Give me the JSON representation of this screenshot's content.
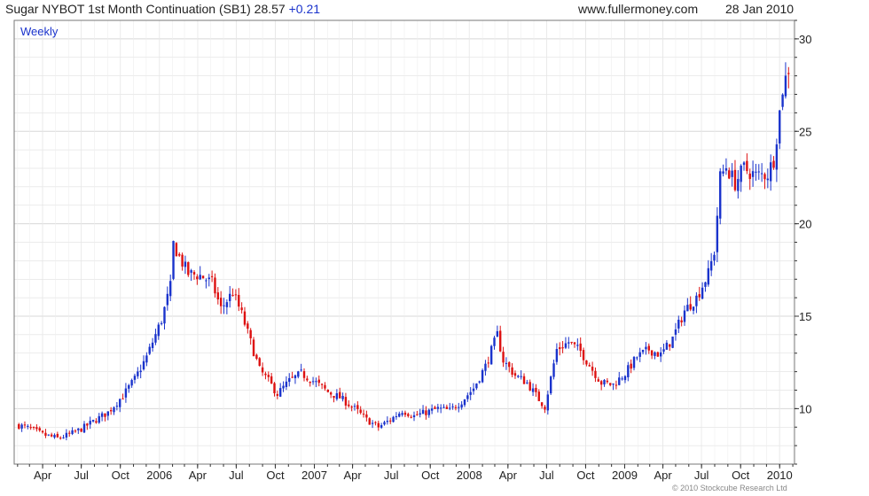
{
  "header": {
    "symbol_title": "Sugar NYBOT 1st Month Continuation (SB1) 28.57",
    "change": "+0.21",
    "site": "www.fullermoney.com",
    "date": "28 Jan 2010"
  },
  "footer": {
    "credit": "© 2010 Stockcube Research Ltd"
  },
  "colors": {
    "up": "#1a33cc",
    "down": "#dd1111",
    "grid": "#d8d8d8",
    "axis": "#333333"
  },
  "chart_data": {
    "type": "candlestick",
    "frequency_label": "Weekly",
    "ylim": [
      7,
      31
    ],
    "y_ticks": [
      10,
      15,
      20,
      25,
      30
    ],
    "x_ticks": [
      "Apr",
      "Jul",
      "Oct",
      "2006",
      "Apr",
      "Jul",
      "Oct",
      "2007",
      "Apr",
      "Jul",
      "Oct",
      "2008",
      "Apr",
      "Jul",
      "Oct",
      "2009",
      "Apr",
      "Jul",
      "Oct",
      "2010"
    ],
    "grid": true,
    "close_series": [
      {
        "x": "2005-02-04",
        "y": 9.1
      },
      {
        "x": "2005-03-04",
        "y": 8.9
      },
      {
        "x": "2005-04-01",
        "y": 8.6
      },
      {
        "x": "2005-05-06",
        "y": 8.4
      },
      {
        "x": "2005-06-03",
        "y": 8.6
      },
      {
        "x": "2005-07-01",
        "y": 8.9
      },
      {
        "x": "2005-08-05",
        "y": 9.4
      },
      {
        "x": "2005-09-02",
        "y": 9.8
      },
      {
        "x": "2005-10-07",
        "y": 10.7
      },
      {
        "x": "2005-11-04",
        "y": 11.6
      },
      {
        "x": "2005-12-02",
        "y": 12.8
      },
      {
        "x": "2006-01-06",
        "y": 14.8
      },
      {
        "x": "2006-01-27",
        "y": 16.6
      },
      {
        "x": "2006-02-03",
        "y": 18.9
      },
      {
        "x": "2006-02-17",
        "y": 18.2
      },
      {
        "x": "2006-03-10",
        "y": 17.3
      },
      {
        "x": "2006-04-07",
        "y": 17.2
      },
      {
        "x": "2006-05-05",
        "y": 16.8
      },
      {
        "x": "2006-05-26",
        "y": 15.4
      },
      {
        "x": "2006-06-23",
        "y": 16.3
      },
      {
        "x": "2006-07-14",
        "y": 15.1
      },
      {
        "x": "2006-08-04",
        "y": 13.6
      },
      {
        "x": "2006-08-25",
        "y": 12.1
      },
      {
        "x": "2006-09-15",
        "y": 11.5
      },
      {
        "x": "2006-10-06",
        "y": 10.8
      },
      {
        "x": "2006-11-03",
        "y": 11.5
      },
      {
        "x": "2006-12-01",
        "y": 11.9
      },
      {
        "x": "2007-01-05",
        "y": 11.4
      },
      {
        "x": "2007-02-02",
        "y": 10.9
      },
      {
        "x": "2007-03-02",
        "y": 10.6
      },
      {
        "x": "2007-04-06",
        "y": 10.0
      },
      {
        "x": "2007-05-04",
        "y": 9.4
      },
      {
        "x": "2007-06-01",
        "y": 9.0
      },
      {
        "x": "2007-06-29",
        "y": 9.4
      },
      {
        "x": "2007-07-27",
        "y": 9.9
      },
      {
        "x": "2007-08-24",
        "y": 9.6
      },
      {
        "x": "2007-09-21",
        "y": 9.8
      },
      {
        "x": "2007-10-19",
        "y": 10.0
      },
      {
        "x": "2007-11-16",
        "y": 9.9
      },
      {
        "x": "2007-12-14",
        "y": 10.4
      },
      {
        "x": "2008-01-11",
        "y": 11.1
      },
      {
        "x": "2008-02-08",
        "y": 12.3
      },
      {
        "x": "2008-03-07",
        "y": 14.0
      },
      {
        "x": "2008-03-21",
        "y": 12.6
      },
      {
        "x": "2008-04-18",
        "y": 11.8
      },
      {
        "x": "2008-05-16",
        "y": 11.4
      },
      {
        "x": "2008-06-13",
        "y": 10.5
      },
      {
        "x": "2008-06-27",
        "y": 10.1
      },
      {
        "x": "2008-07-25",
        "y": 13.2
      },
      {
        "x": "2008-08-22",
        "y": 13.6
      },
      {
        "x": "2008-09-19",
        "y": 13.1
      },
      {
        "x": "2008-10-17",
        "y": 12.1
      },
      {
        "x": "2008-11-07",
        "y": 11.4
      },
      {
        "x": "2008-12-05",
        "y": 11.3
      },
      {
        "x": "2009-01-02",
        "y": 11.9
      },
      {
        "x": "2009-01-30",
        "y": 12.8
      },
      {
        "x": "2009-02-27",
        "y": 13.2
      },
      {
        "x": "2009-03-27",
        "y": 12.9
      },
      {
        "x": "2009-04-24",
        "y": 13.8
      },
      {
        "x": "2009-05-22",
        "y": 15.3
      },
      {
        "x": "2009-06-19",
        "y": 16.0
      },
      {
        "x": "2009-07-17",
        "y": 17.3
      },
      {
        "x": "2009-07-31",
        "y": 18.5
      },
      {
        "x": "2009-08-14",
        "y": 22.5
      },
      {
        "x": "2009-08-28",
        "y": 23.1
      },
      {
        "x": "2009-09-18",
        "y": 22.2
      },
      {
        "x": "2009-10-09",
        "y": 23.0
      },
      {
        "x": "2009-11-06",
        "y": 22.6
      },
      {
        "x": "2009-12-04",
        "y": 22.7
      },
      {
        "x": "2009-12-18",
        "y": 23.5
      },
      {
        "x": "2010-01-08",
        "y": 27.3
      },
      {
        "x": "2010-01-22",
        "y": 28.4
      },
      {
        "x": "2010-01-28",
        "y": 28.57
      }
    ]
  }
}
